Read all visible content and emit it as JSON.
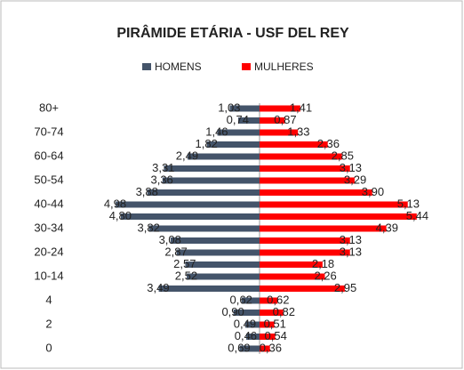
{
  "chart_data": {
    "type": "bar",
    "orientation": "pyramid",
    "title": "PIRÂMIDE ETÁRIA - USF DEL REY",
    "categories": [
      "80+",
      null,
      "70-74",
      null,
      "60-64",
      null,
      "50-54",
      null,
      "40-44",
      null,
      "30-34",
      null,
      "20-24",
      null,
      "10-14",
      null,
      "4",
      null,
      "2",
      null,
      "0"
    ],
    "series": [
      {
        "name": "HOMENS",
        "color": "#44546a",
        "values": [
          1.03,
          0.74,
          1.46,
          1.82,
          2.49,
          3.31,
          3.36,
          3.88,
          4.98,
          4.8,
          3.82,
          3.08,
          2.87,
          2.57,
          2.52,
          3.49,
          0.62,
          0.9,
          0.49,
          0.46,
          0.69
        ],
        "value_labels": [
          "1,03",
          "0,74",
          "1,46",
          "1,82",
          "2,49",
          "3,31",
          "3,36",
          "3,88",
          "4,98",
          "4,80",
          "3,82",
          "3,08",
          "2,87",
          "2,57",
          "2,52",
          "3,49",
          "0,62",
          "0,90",
          "0,49",
          "0,46",
          "0,69"
        ]
      },
      {
        "name": "MULHERES",
        "color": "#ff0000",
        "values": [
          1.41,
          0.87,
          1.33,
          2.36,
          2.85,
          3.13,
          3.29,
          3.9,
          5.13,
          5.44,
          4.39,
          3.13,
          3.13,
          2.18,
          2.26,
          2.95,
          0.62,
          0.82,
          0.51,
          0.54,
          0.36
        ],
        "value_labels": [
          "1,41",
          "0,87",
          "1,33",
          "2,36",
          "2,85",
          "3,13",
          "3,29",
          "3,90",
          "5,13",
          "5,44",
          "4,39",
          "3,13",
          "3,13",
          "2,18",
          "2,26",
          "2,95",
          "0,62",
          "0,82",
          "0,51",
          "0,54",
          "0,36"
        ]
      }
    ],
    "legend": "top"
  }
}
